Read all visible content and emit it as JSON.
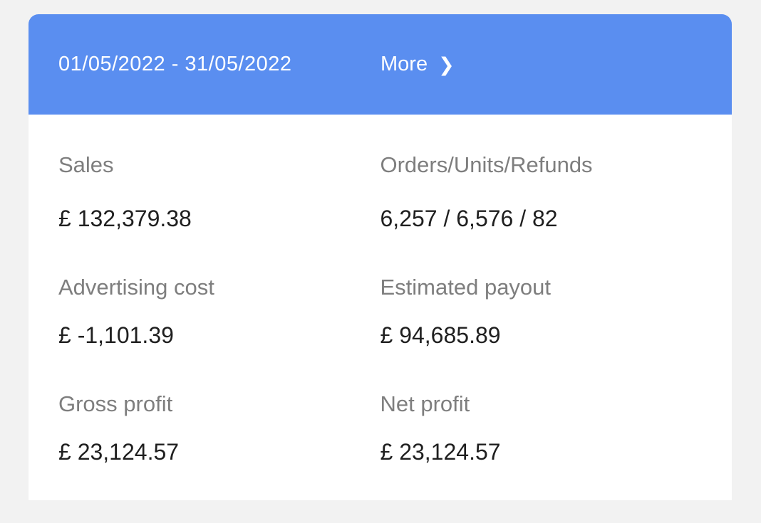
{
  "header": {
    "date_range": "01/05/2022 - 31/05/2022",
    "more_label": "More",
    "chevron_icon": "❯"
  },
  "stats": [
    {
      "label": "Sales",
      "value": "£ 132,379.38"
    },
    {
      "label": "Orders/Units/Refunds",
      "value": "6,257 / 6,576 / 82"
    },
    {
      "label": "Advertising cost",
      "value": "£ -1,101.39"
    },
    {
      "label": "Estimated payout",
      "value": "£ 94,685.89"
    },
    {
      "label": "Gross profit",
      "value": "£ 23,124.57"
    },
    {
      "label": "Net profit",
      "value": "£ 23,124.57"
    }
  ],
  "colors": {
    "page_background": "#F2F2F2",
    "card_background": "#FFFFFF",
    "header_background": "#5A8EF0",
    "header_text": "#FFFFFF",
    "label_text": "#7E7E7E",
    "value_text": "#1F1F1F"
  }
}
